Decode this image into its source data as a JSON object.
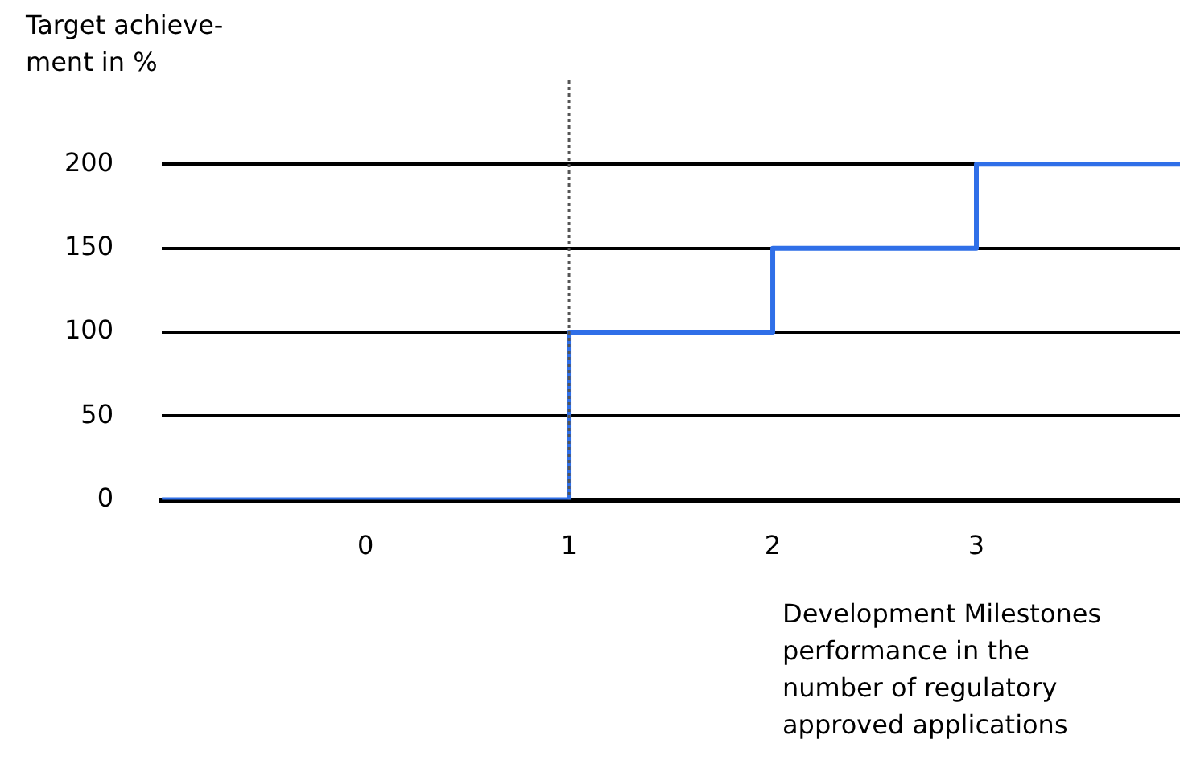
{
  "chart_data": {
    "type": "step",
    "ylabel": "Target achieve-\nment in %",
    "xlabel": "Development Milestones\nperformance in the\nnumber of regulatory\napproved applications",
    "x": [
      -1,
      1,
      2,
      3,
      4
    ],
    "series": [
      {
        "color": "#2f6fe8",
        "values": [
          0,
          100,
          150,
          200,
          200
        ]
      }
    ],
    "xlim": [
      -1,
      4
    ],
    "xticks": [
      0,
      1,
      2,
      3
    ],
    "ylim": [
      0,
      250
    ],
    "yticks": [
      0,
      50,
      100,
      150,
      200
    ],
    "grid": "y",
    "legend": false,
    "marker": "none",
    "ref_lines": [
      {
        "axis": "x",
        "value": 1,
        "color": "#555555",
        "line_style": "dotted"
      }
    ]
  }
}
